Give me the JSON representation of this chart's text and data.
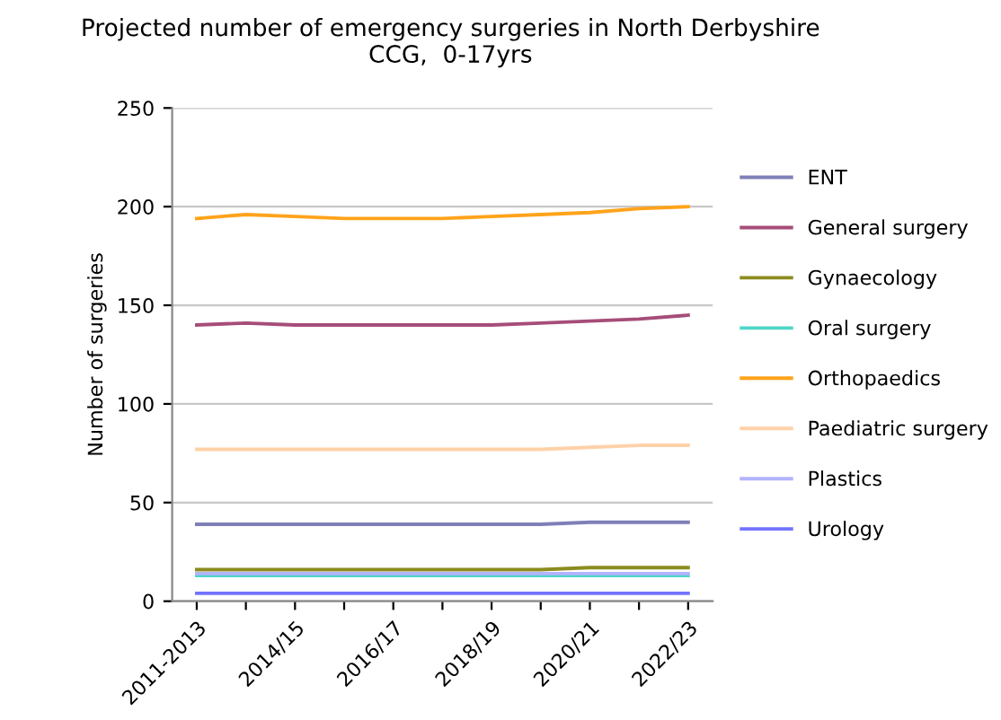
{
  "chart_data": {
    "type": "line",
    "title": "Projected number of emergency surgeries in North Derbyshire\nCCG,  0-17yrs",
    "ylabel": "Number of surgeries",
    "categories": [
      "2011-2013",
      null,
      "2014/15",
      null,
      "2016/17",
      null,
      "2018/19",
      null,
      "2020/21",
      null,
      "2022/23"
    ],
    "series": [
      {
        "name": "ENT",
        "color": "#7f7fb8",
        "values": [
          39,
          39,
          39,
          39,
          39,
          39,
          39,
          39,
          40,
          40,
          40
        ]
      },
      {
        "name": "General surgery",
        "color": "#a64d79",
        "values": [
          140,
          141,
          140,
          140,
          140,
          140,
          140,
          141,
          142,
          143,
          145
        ]
      },
      {
        "name": "Gynaecology",
        "color": "#8c8c1f",
        "values": [
          16,
          16,
          16,
          16,
          16,
          16,
          16,
          16,
          17,
          17,
          17
        ]
      },
      {
        "name": "Oral surgery",
        "color": "#4fd6c8",
        "values": [
          13,
          13,
          13,
          13,
          13,
          13,
          13,
          13,
          13,
          13,
          13
        ]
      },
      {
        "name": "Orthopaedics",
        "color": "#ffa31a",
        "values": [
          194,
          196,
          195,
          194,
          194,
          194,
          195,
          196,
          197,
          199,
          200
        ]
      },
      {
        "name": "Paediatric surgery",
        "color": "#ffd1a8",
        "values": [
          77,
          77,
          77,
          77,
          77,
          77,
          77,
          77,
          78,
          79,
          79
        ]
      },
      {
        "name": "Plastics",
        "color": "#b3b3ff",
        "values": [
          14,
          14,
          14,
          14,
          14,
          14,
          14,
          14,
          14,
          14,
          14
        ]
      },
      {
        "name": "Urology",
        "color": "#7373ff",
        "values": [
          4,
          4,
          4,
          4,
          4,
          4,
          4,
          4,
          4,
          4,
          4
        ]
      }
    ],
    "ylim": [
      0,
      250
    ],
    "yticks": [
      0,
      50,
      100,
      150,
      200,
      250
    ],
    "grid": "y",
    "legend": "right",
    "marker": "none",
    "line_style": "solid"
  }
}
